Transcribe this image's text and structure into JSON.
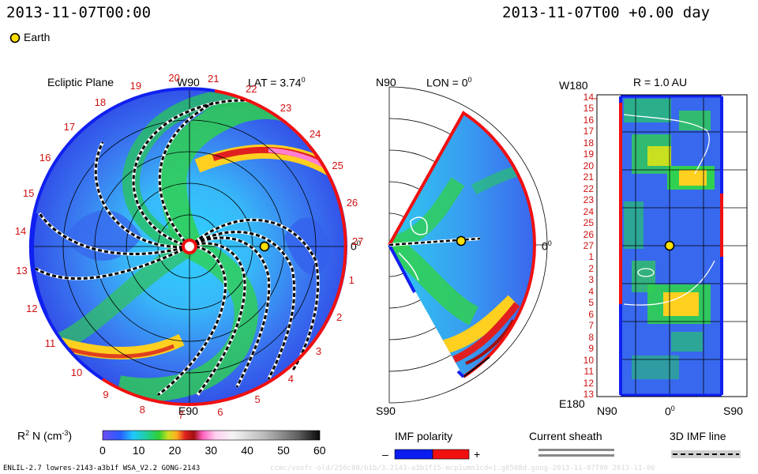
{
  "header": {
    "left_time": "2013-11-07T00:00",
    "right_time": "2013-11-07T00 +0.00 day"
  },
  "legend": {
    "earth_label": "Earth"
  },
  "ecliptic": {
    "title": "Ecliptic Plane",
    "w90": "W90",
    "e90": "E90",
    "lat": "LAT = 3.74",
    "lat_deg": "0",
    "zero": "0",
    "zero_deg": "0",
    "ticks": [
      "20",
      "21",
      "22",
      "23",
      "24",
      "25",
      "26",
      "27",
      "1",
      "2",
      "3",
      "4",
      "5",
      "6",
      "7",
      "8",
      "9",
      "10",
      "11",
      "12",
      "13",
      "14",
      "15",
      "16",
      "17",
      "18",
      "19"
    ]
  },
  "meridional": {
    "n90": "N90",
    "s90": "S90",
    "lon": "LON = 0",
    "lon_deg": "0",
    "zero": "0",
    "zero_deg": "0"
  },
  "au": {
    "title": "R = 1.0 AU",
    "w180": "W180",
    "e180": "E180",
    "n90": "N90",
    "zero": "0",
    "zero_deg": "0",
    "s90": "S90",
    "ticks": [
      "14",
      "15",
      "16",
      "17",
      "18",
      "19",
      "20",
      "21",
      "22",
      "23",
      "24",
      "25",
      "26",
      "27",
      "1",
      "2",
      "3",
      "4",
      "5",
      "6",
      "7",
      "8",
      "9",
      "10",
      "11",
      "12",
      "13"
    ]
  },
  "colorbar": {
    "label_main": "R",
    "label_sup": "2",
    "label_rest": " N (cm",
    "label_exp": "-3",
    "label_close": ")",
    "ticks": [
      "0",
      "10",
      "20",
      "30",
      "40",
      "50",
      "60"
    ]
  },
  "imf": {
    "title": "IMF polarity",
    "minus": "–",
    "plus": "+",
    "neg_color": "#0a1cf0",
    "pos_color": "#f01010"
  },
  "sheath": {
    "title": "Current sheath"
  },
  "line3d": {
    "title": "3D IMF line"
  },
  "footer": {
    "left": "ENLIL-2.7 lowres-2143-a3b1f WSA_V2.2 GONG-2143",
    "right": "ccmc/vsofr-old/256c80/b1b/3.2143-a3b1f15-mcp1umn1cd=1.g8508d.gong-2013-11-07T00   2013-11-06"
  }
}
